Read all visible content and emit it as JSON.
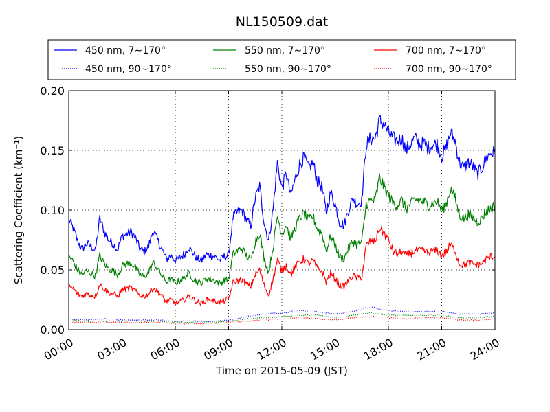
{
  "chart_data": {
    "type": "line",
    "title": "NL150509.dat",
    "xlabel": "Time on 2015-05-09 (JST)",
    "ylabel": "Scattering Coefficient (km⁻¹)",
    "xlim": [
      "00:00",
      "24:00"
    ],
    "ylim": [
      0.0,
      0.2
    ],
    "xticks": [
      "00:00",
      "03:00",
      "06:00",
      "09:00",
      "12:00",
      "15:00",
      "18:00",
      "21:00",
      "24:00"
    ],
    "yticks": [
      "0.00",
      "0.05",
      "0.10",
      "0.15",
      "0.20"
    ],
    "grid": true,
    "legend_position": "top",
    "series": [
      {
        "name": "450 nm, 7∼170°",
        "color": "#0000ff",
        "style": "solid",
        "x": [
          0,
          0.25,
          0.5,
          0.75,
          1,
          1.25,
          1.5,
          1.75,
          2,
          2.25,
          2.5,
          2.75,
          3,
          3.25,
          3.5,
          3.75,
          4,
          4.25,
          4.5,
          4.75,
          5,
          5.25,
          5.5,
          5.75,
          6,
          6.25,
          6.5,
          6.75,
          7,
          7.25,
          7.5,
          7.75,
          8,
          8.25,
          8.5,
          8.75,
          9,
          9.25,
          9.5,
          9.75,
          10,
          10.25,
          10.5,
          10.75,
          11,
          11.25,
          11.5,
          11.75,
          12,
          12.25,
          12.5,
          12.75,
          13,
          13.25,
          13.5,
          13.75,
          14,
          14.25,
          14.5,
          14.75,
          15,
          15.25,
          15.5,
          15.75,
          16,
          16.25,
          16.5,
          16.75,
          17,
          17.25,
          17.5,
          17.75,
          18,
          18.25,
          18.5,
          18.75,
          19,
          19.25,
          19.5,
          19.75,
          20,
          20.25,
          20.5,
          20.75,
          21,
          21.25,
          21.5,
          21.75,
          22,
          22.25,
          22.5,
          22.75,
          23,
          23.25,
          23.5,
          23.75,
          24
        ],
        "y": [
          0.092,
          0.085,
          0.074,
          0.067,
          0.072,
          0.07,
          0.066,
          0.093,
          0.082,
          0.075,
          0.072,
          0.067,
          0.078,
          0.08,
          0.082,
          0.077,
          0.068,
          0.065,
          0.07,
          0.083,
          0.075,
          0.067,
          0.059,
          0.062,
          0.058,
          0.06,
          0.063,
          0.069,
          0.064,
          0.059,
          0.058,
          0.063,
          0.062,
          0.061,
          0.058,
          0.061,
          0.062,
          0.094,
          0.098,
          0.1,
          0.092,
          0.087,
          0.11,
          0.12,
          0.09,
          0.074,
          0.1,
          0.14,
          0.118,
          0.131,
          0.112,
          0.126,
          0.138,
          0.144,
          0.135,
          0.14,
          0.124,
          0.12,
          0.098,
          0.115,
          0.105,
          0.09,
          0.087,
          0.1,
          0.11,
          0.105,
          0.108,
          0.155,
          0.16,
          0.16,
          0.175,
          0.172,
          0.165,
          0.16,
          0.158,
          0.16,
          0.15,
          0.156,
          0.16,
          0.155,
          0.156,
          0.152,
          0.155,
          0.155,
          0.145,
          0.152,
          0.165,
          0.158,
          0.14,
          0.135,
          0.14,
          0.137,
          0.13,
          0.135,
          0.143,
          0.148,
          0.148
        ]
      },
      {
        "name": "450 nm, 90∼170°",
        "color": "#0000ff",
        "style": "dotted",
        "x": [
          0,
          1,
          2,
          3,
          4,
          5,
          6,
          7,
          8,
          9,
          10,
          11,
          12,
          13,
          14,
          15,
          16,
          17,
          18,
          19,
          20,
          21,
          22,
          23,
          24
        ],
        "y": [
          0.009,
          0.008,
          0.009,
          0.008,
          0.008,
          0.008,
          0.007,
          0.007,
          0.007,
          0.008,
          0.011,
          0.013,
          0.014,
          0.016,
          0.015,
          0.013,
          0.015,
          0.019,
          0.016,
          0.015,
          0.015,
          0.015,
          0.013,
          0.013,
          0.014
        ]
      },
      {
        "name": "550 nm, 7∼170°",
        "color": "#008000",
        "style": "solid",
        "x": [
          0,
          0.25,
          0.5,
          0.75,
          1,
          1.25,
          1.5,
          1.75,
          2,
          2.25,
          2.5,
          2.75,
          3,
          3.25,
          3.5,
          3.75,
          4,
          4.25,
          4.5,
          4.75,
          5,
          5.25,
          5.5,
          5.75,
          6,
          6.25,
          6.5,
          6.75,
          7,
          7.25,
          7.5,
          7.75,
          8,
          8.25,
          8.5,
          8.75,
          9,
          9.25,
          9.5,
          9.75,
          10,
          10.25,
          10.5,
          10.75,
          11,
          11.25,
          11.5,
          11.75,
          12,
          12.25,
          12.5,
          12.75,
          13,
          13.25,
          13.5,
          13.75,
          14,
          14.25,
          14.5,
          14.75,
          15,
          15.25,
          15.5,
          15.75,
          16,
          16.25,
          16.5,
          16.75,
          17,
          17.25,
          17.5,
          17.75,
          18,
          18.25,
          18.5,
          18.75,
          19,
          19.25,
          19.5,
          19.75,
          20,
          20.25,
          20.5,
          20.75,
          21,
          21.25,
          21.5,
          21.75,
          22,
          22.25,
          22.5,
          22.75,
          23,
          23.25,
          23.5,
          23.75,
          24
        ],
        "y": [
          0.062,
          0.057,
          0.05,
          0.046,
          0.049,
          0.047,
          0.045,
          0.062,
          0.055,
          0.051,
          0.049,
          0.046,
          0.053,
          0.055,
          0.056,
          0.052,
          0.046,
          0.044,
          0.048,
          0.056,
          0.051,
          0.045,
          0.04,
          0.042,
          0.039,
          0.041,
          0.043,
          0.047,
          0.043,
          0.04,
          0.039,
          0.043,
          0.042,
          0.041,
          0.039,
          0.041,
          0.042,
          0.063,
          0.066,
          0.068,
          0.062,
          0.058,
          0.074,
          0.081,
          0.06,
          0.048,
          0.068,
          0.095,
          0.08,
          0.088,
          0.076,
          0.085,
          0.093,
          0.097,
          0.091,
          0.095,
          0.084,
          0.081,
          0.066,
          0.078,
          0.071,
          0.061,
          0.059,
          0.068,
          0.074,
          0.071,
          0.073,
          0.105,
          0.108,
          0.108,
          0.127,
          0.12,
          0.112,
          0.106,
          0.104,
          0.108,
          0.101,
          0.105,
          0.109,
          0.108,
          0.107,
          0.104,
          0.106,
          0.107,
          0.1,
          0.105,
          0.118,
          0.11,
          0.096,
          0.093,
          0.096,
          0.094,
          0.09,
          0.093,
          0.099,
          0.101,
          0.104
        ]
      },
      {
        "name": "550 nm, 90∼170°",
        "color": "#008000",
        "style": "dotted",
        "x": [
          0,
          1,
          2,
          3,
          4,
          5,
          6,
          7,
          8,
          9,
          10,
          11,
          12,
          13,
          14,
          15,
          16,
          17,
          18,
          19,
          20,
          21,
          22,
          23,
          24
        ],
        "y": [
          0.008,
          0.007,
          0.007,
          0.007,
          0.007,
          0.007,
          0.006,
          0.006,
          0.006,
          0.007,
          0.009,
          0.01,
          0.011,
          0.012,
          0.012,
          0.01,
          0.012,
          0.014,
          0.012,
          0.012,
          0.012,
          0.012,
          0.01,
          0.01,
          0.011
        ]
      },
      {
        "name": "700 nm, 7∼170°",
        "color": "#ff0000",
        "style": "solid",
        "x": [
          0,
          0.25,
          0.5,
          0.75,
          1,
          1.25,
          1.5,
          1.75,
          2,
          2.25,
          2.5,
          2.75,
          3,
          3.25,
          3.5,
          3.75,
          4,
          4.25,
          4.5,
          4.75,
          5,
          5.25,
          5.5,
          5.75,
          6,
          6.25,
          6.5,
          6.75,
          7,
          7.25,
          7.5,
          7.75,
          8,
          8.25,
          8.5,
          8.75,
          9,
          9.25,
          9.5,
          9.75,
          10,
          10.25,
          10.5,
          10.75,
          11,
          11.25,
          11.5,
          11.75,
          12,
          12.25,
          12.5,
          12.75,
          13,
          13.25,
          13.5,
          13.75,
          14,
          14.25,
          14.5,
          14.75,
          15,
          15.25,
          15.5,
          15.75,
          16,
          16.25,
          16.5,
          16.75,
          17,
          17.25,
          17.5,
          17.75,
          18,
          18.25,
          18.5,
          18.75,
          19,
          19.25,
          19.5,
          19.75,
          20,
          20.25,
          20.5,
          20.75,
          21,
          21.25,
          21.5,
          21.75,
          22,
          22.25,
          22.5,
          22.75,
          23,
          23.25,
          23.5,
          23.75,
          24
        ],
        "y": [
          0.037,
          0.034,
          0.03,
          0.028,
          0.03,
          0.029,
          0.028,
          0.038,
          0.034,
          0.031,
          0.03,
          0.028,
          0.033,
          0.034,
          0.035,
          0.032,
          0.029,
          0.028,
          0.03,
          0.035,
          0.032,
          0.028,
          0.023,
          0.025,
          0.022,
          0.023,
          0.025,
          0.028,
          0.026,
          0.023,
          0.022,
          0.025,
          0.025,
          0.024,
          0.023,
          0.024,
          0.026,
          0.039,
          0.041,
          0.042,
          0.038,
          0.036,
          0.046,
          0.05,
          0.037,
          0.029,
          0.042,
          0.058,
          0.049,
          0.054,
          0.046,
          0.052,
          0.057,
          0.059,
          0.055,
          0.058,
          0.051,
          0.049,
          0.04,
          0.047,
          0.043,
          0.037,
          0.036,
          0.041,
          0.045,
          0.043,
          0.044,
          0.07,
          0.074,
          0.074,
          0.085,
          0.081,
          0.075,
          0.066,
          0.063,
          0.066,
          0.062,
          0.064,
          0.066,
          0.066,
          0.066,
          0.064,
          0.066,
          0.066,
          0.062,
          0.065,
          0.071,
          0.066,
          0.055,
          0.054,
          0.056,
          0.055,
          0.054,
          0.055,
          0.059,
          0.061,
          0.061
        ]
      },
      {
        "name": "700 nm, 90∼170°",
        "color": "#ff0000",
        "style": "dotted",
        "x": [
          0,
          1,
          2,
          3,
          4,
          5,
          6,
          7,
          8,
          9,
          10,
          11,
          12,
          13,
          14,
          15,
          16,
          17,
          18,
          19,
          20,
          21,
          22,
          23,
          24
        ],
        "y": [
          0.006,
          0.006,
          0.006,
          0.006,
          0.006,
          0.006,
          0.005,
          0.005,
          0.005,
          0.006,
          0.007,
          0.008,
          0.009,
          0.01,
          0.009,
          0.008,
          0.01,
          0.011,
          0.01,
          0.009,
          0.01,
          0.01,
          0.008,
          0.008,
          0.009
        ]
      }
    ]
  }
}
